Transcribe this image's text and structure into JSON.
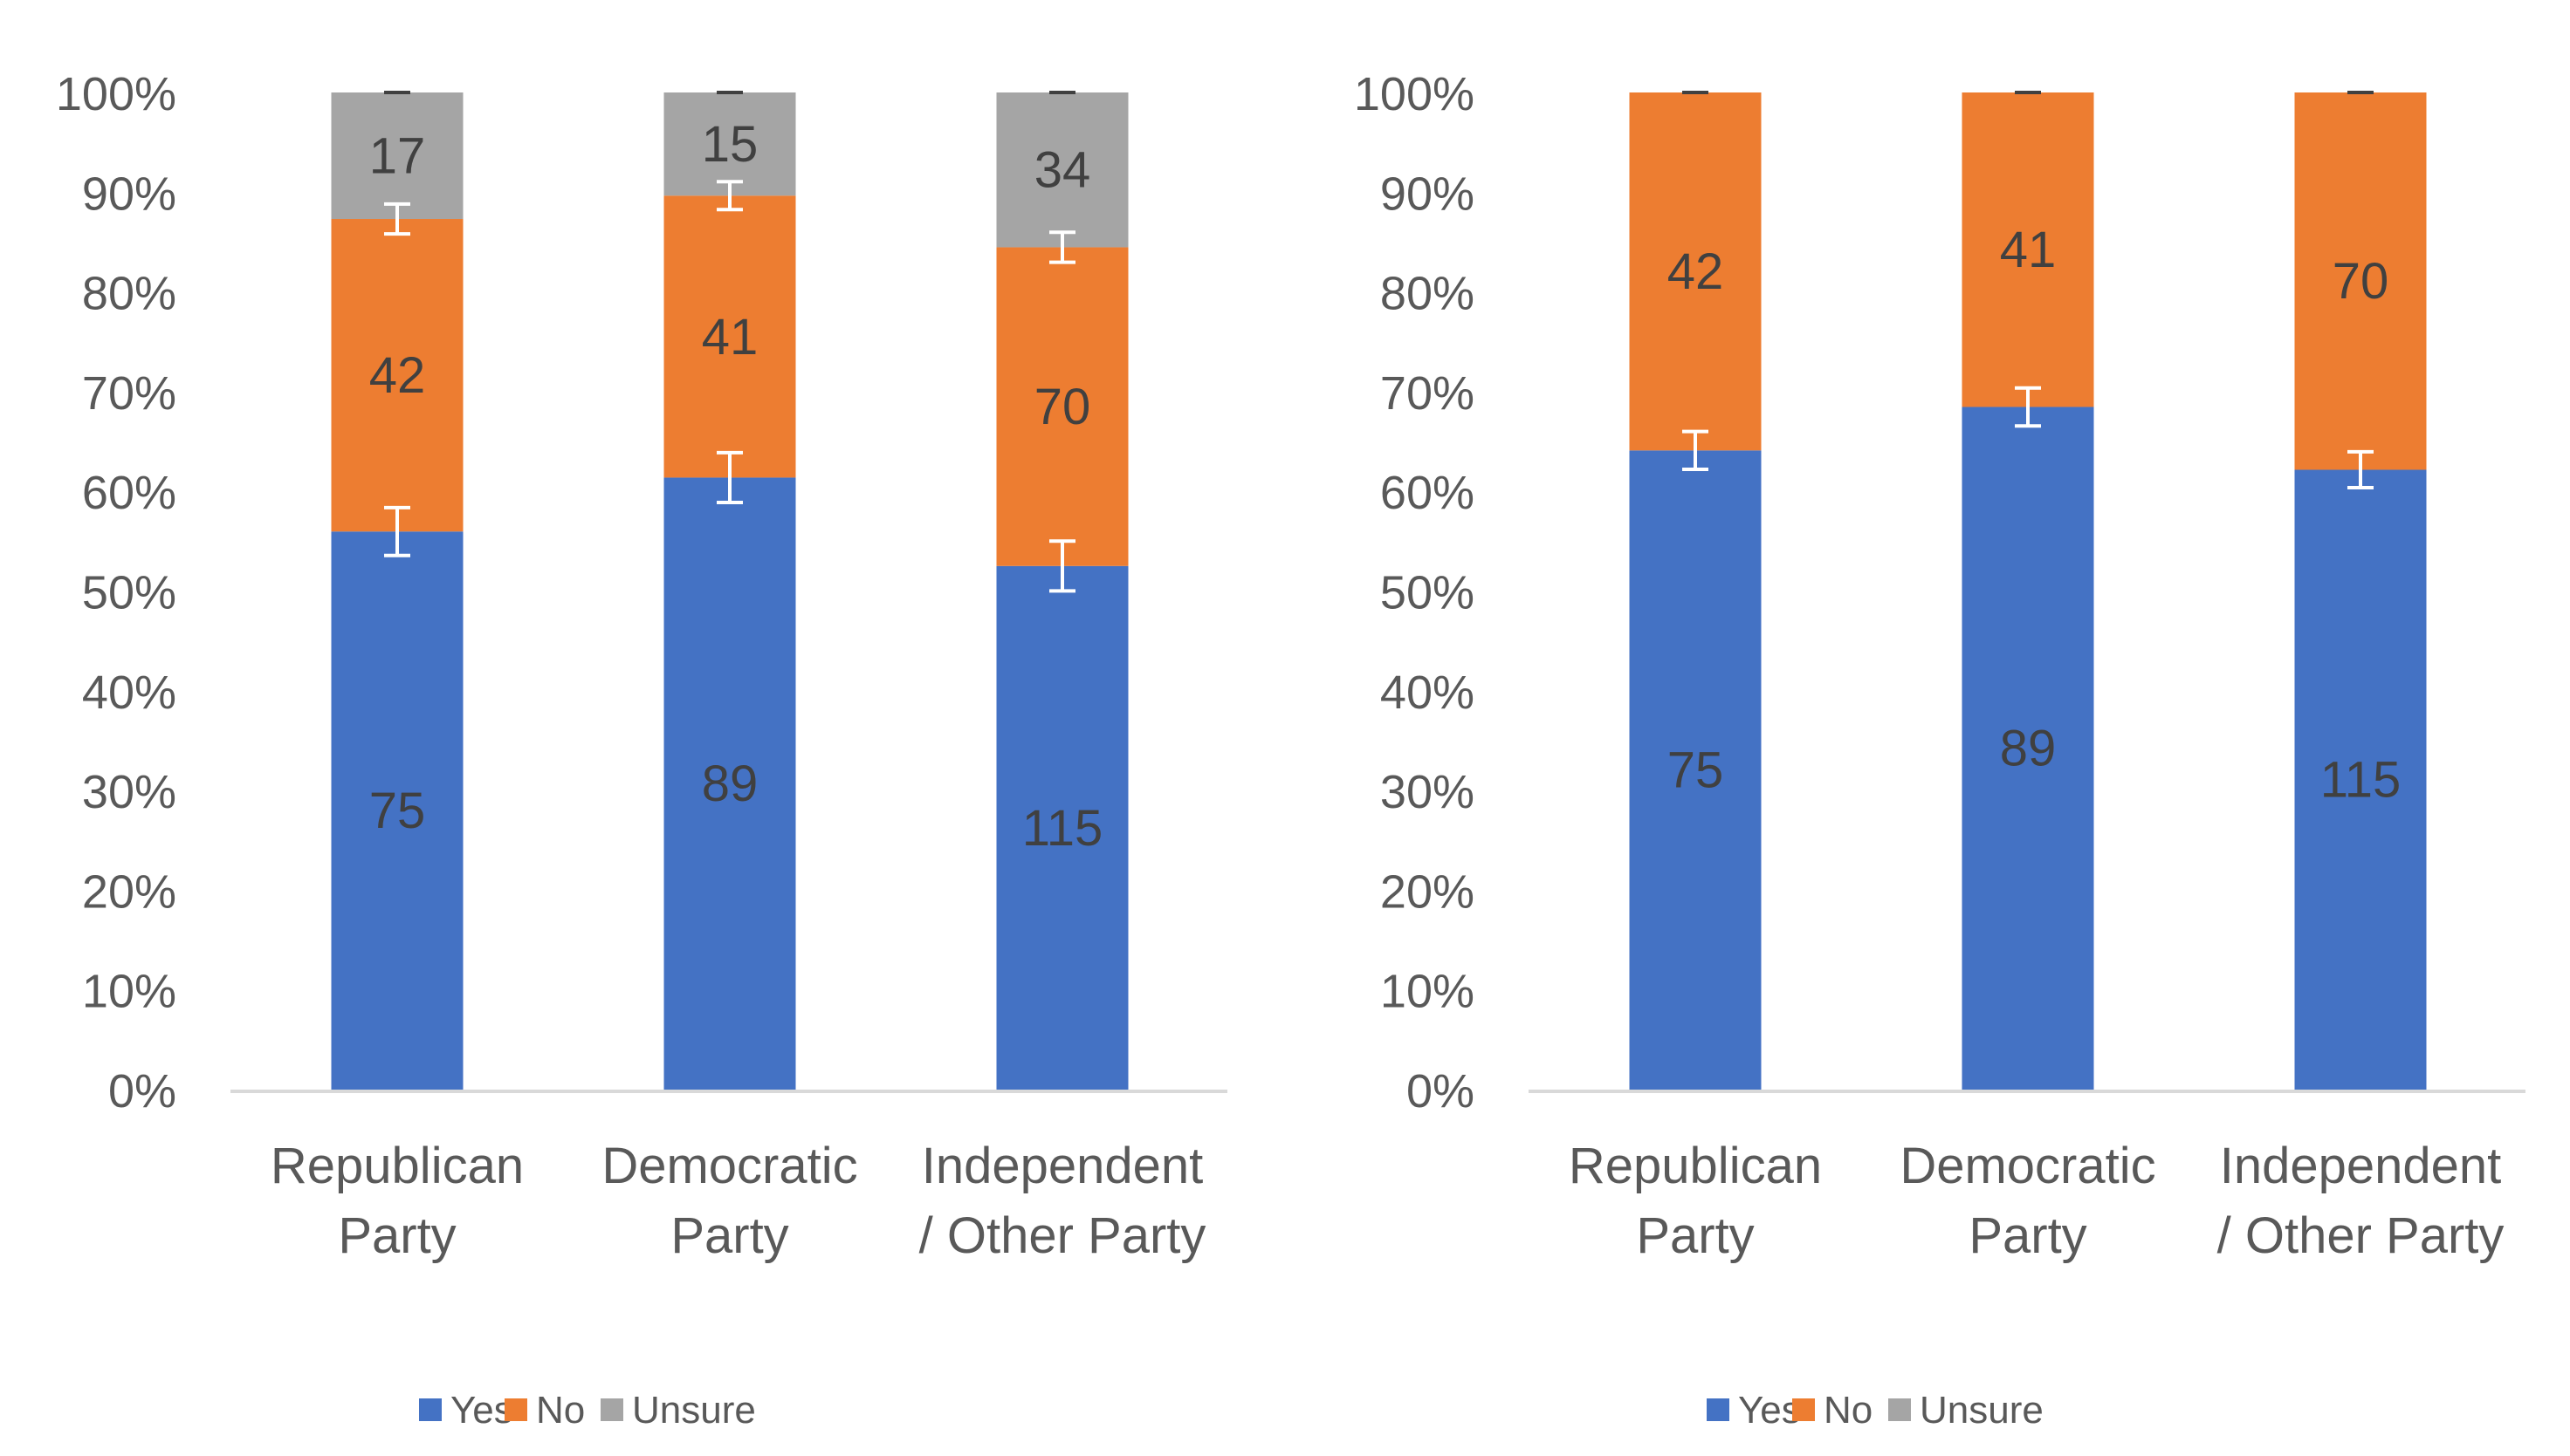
{
  "chart_data": [
    {
      "type": "bar",
      "stacked": "100%",
      "categories": [
        "Republican Party",
        "Democratic Party",
        "Independent / Other Party"
      ],
      "category_lines": [
        [
          "Republican",
          "Party"
        ],
        [
          "Democratic",
          "Party"
        ],
        [
          "Independent",
          "/ Other Party"
        ]
      ],
      "series": [
        {
          "name": "Yes",
          "color": "#4472C4",
          "values": [
            75,
            89,
            115
          ],
          "error_pct": [
            2.4,
            2.5,
            2.5
          ]
        },
        {
          "name": "No",
          "color": "#ED7D31",
          "values": [
            42,
            41,
            70
          ],
          "error_pct": [
            1.5,
            1.4,
            1.5
          ]
        },
        {
          "name": "Unsure",
          "color": "#A5A5A5",
          "values": [
            17,
            15,
            34
          ],
          "error_pct": [
            0,
            0,
            0
          ]
        }
      ],
      "yticks": [
        "0%",
        "10%",
        "20%",
        "30%",
        "40%",
        "50%",
        "60%",
        "70%",
        "80%",
        "90%",
        "100%"
      ],
      "ylim": [
        0,
        100
      ],
      "grid": false,
      "legend": "bottom"
    },
    {
      "type": "bar",
      "stacked": "100%",
      "categories": [
        "Republican Party",
        "Democratic Party",
        "Independent / Other Party"
      ],
      "category_lines": [
        [
          "Republican",
          "Party"
        ],
        [
          "Democratic",
          "Party"
        ],
        [
          "Independent",
          "/ Other Party"
        ]
      ],
      "series": [
        {
          "name": "Yes",
          "color": "#4472C4",
          "values": [
            75,
            89,
            115
          ],
          "error_pct": [
            1.9,
            1.9,
            1.8
          ]
        },
        {
          "name": "No",
          "color": "#ED7D31",
          "values": [
            42,
            41,
            70
          ],
          "error_pct": [
            0,
            0,
            0
          ]
        },
        {
          "name": "Unsure",
          "color": "#A5A5A5",
          "values": [
            0,
            0,
            0
          ],
          "error_pct": [
            0,
            0,
            0
          ]
        }
      ],
      "yticks": [
        "0%",
        "10%",
        "20%",
        "30%",
        "40%",
        "50%",
        "60%",
        "70%",
        "80%",
        "90%",
        "100%"
      ],
      "ylim": [
        0,
        100
      ],
      "grid": false,
      "legend": "bottom"
    }
  ]
}
